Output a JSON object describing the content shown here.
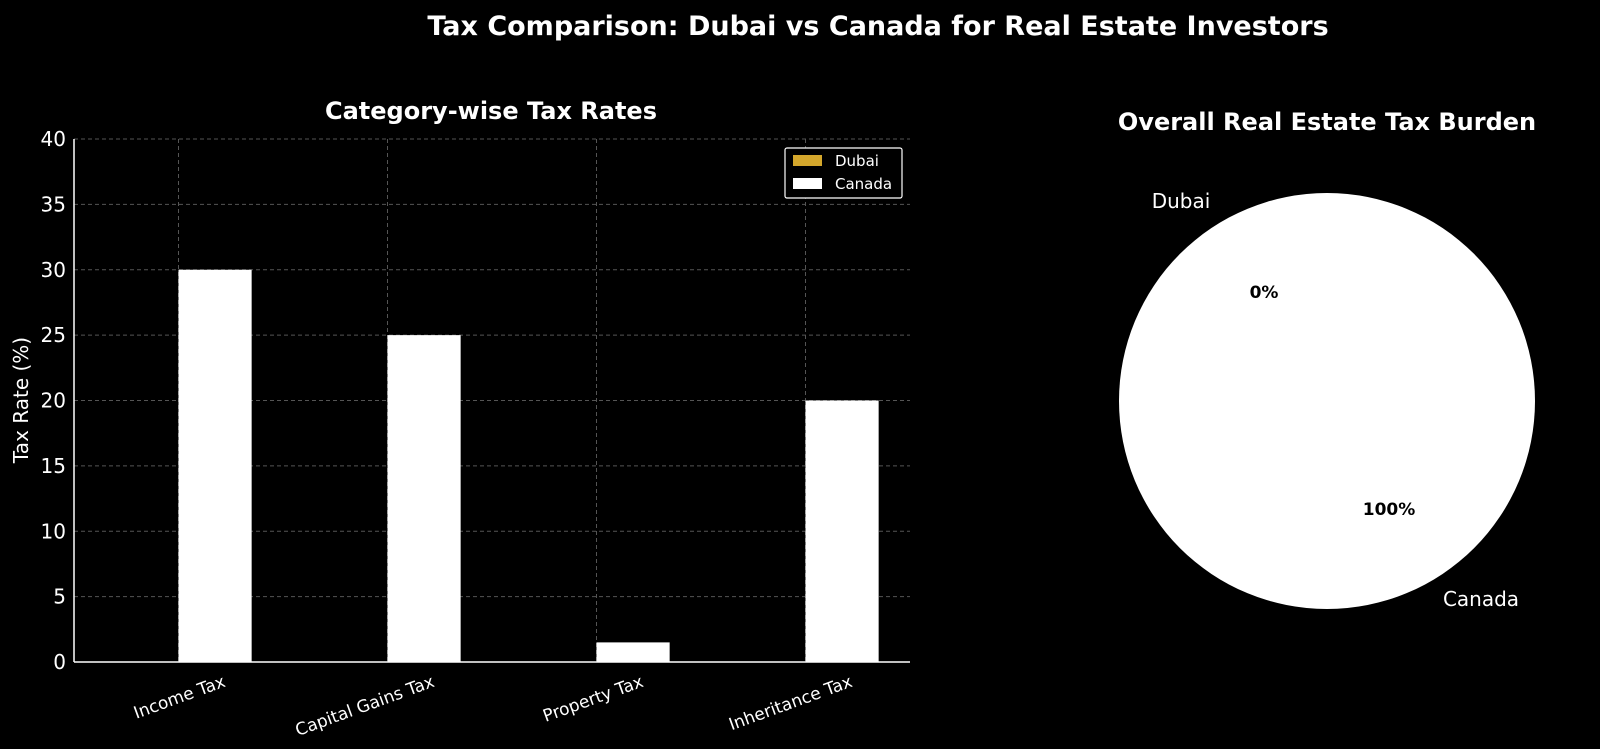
{
  "figure_title": "Tax Comparison: Dubai vs Canada for Real Estate Investors",
  "colors": {
    "background": "#000000",
    "dubai": "#d4a72c",
    "canada": "#ffffff",
    "text": "#ffffff",
    "grid": "#555555"
  },
  "chart_data": [
    {
      "type": "bar",
      "title": "Category-wise Tax Rates",
      "xlabel": "",
      "ylabel": "Tax Rate (%)",
      "ylim": [
        0,
        40
      ],
      "yticks": [
        "0",
        "5",
        "10",
        "15",
        "20",
        "25",
        "30",
        "35",
        "40"
      ],
      "categories": [
        "Income Tax",
        "Capital Gains Tax",
        "Property Tax",
        "Inheritance Tax"
      ],
      "series": [
        {
          "name": "Dubai",
          "values": [
            0,
            0,
            0,
            0
          ]
        },
        {
          "name": "Canada",
          "values": [
            30,
            25,
            1.5,
            20
          ]
        }
      ],
      "grid": true,
      "legend": "upper right"
    },
    {
      "type": "pie",
      "title": "Overall Real Estate Tax Burden",
      "labels": [
        "Dubai",
        "Canada"
      ],
      "values": [
        0,
        100
      ],
      "pct_labels": [
        "0%",
        "100%"
      ]
    }
  ]
}
